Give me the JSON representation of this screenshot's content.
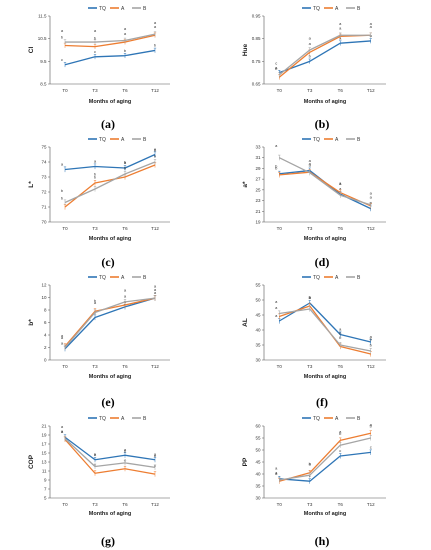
{
  "figure": {
    "colors": {
      "TQ": "#2e75b6",
      "A": "#ed7d31",
      "B": "#a5a5a5",
      "axis": "#555555",
      "text": "#333333"
    },
    "legend_labels": [
      "TQ",
      "A",
      "B"
    ]
  },
  "chart_data": [
    {
      "type": "line",
      "panel": "(a)",
      "categories": [
        "T0",
        "T3",
        "T6",
        "T12"
      ],
      "xlabel": "Months of aging",
      "ylabel": "CI",
      "ylim": [
        8.5,
        11.5
      ],
      "yticks": [
        "8.5",
        "9.5",
        "10.5",
        "11.5"
      ],
      "series": [
        {
          "name": "TQ",
          "values": [
            9.35,
            9.7,
            9.75,
            9.98
          ],
          "letters": [
            "c",
            "c",
            "b",
            "b"
          ]
        },
        {
          "name": "A",
          "values": [
            10.2,
            10.15,
            10.35,
            10.65
          ],
          "letters": [
            "b",
            "b",
            "a",
            "a"
          ]
        },
        {
          "name": "B",
          "values": [
            10.35,
            10.35,
            10.42,
            10.7
          ],
          "letters": [
            "a",
            "a",
            "a",
            "a"
          ]
        }
      ]
    },
    {
      "type": "line",
      "panel": "(b)",
      "categories": [
        "T0",
        "T3",
        "T6",
        "T12"
      ],
      "xlabel": "Months of aging",
      "ylabel": "Hue",
      "ylim": [
        0.65,
        0.95
      ],
      "yticks": [
        "0.65",
        "0.75",
        "0.85",
        "0.95"
      ],
      "series": [
        {
          "name": "TQ",
          "values": [
            0.7,
            0.75,
            0.83,
            0.84
          ],
          "letters": [
            "a",
            "b",
            "a",
            "a"
          ]
        },
        {
          "name": "A",
          "values": [
            0.68,
            0.79,
            0.86,
            0.865
          ],
          "letters": [
            "b",
            "a",
            "a",
            "a"
          ]
        },
        {
          "name": "B",
          "values": [
            0.69,
            0.8,
            0.865,
            0.865
          ],
          "letters": [
            "c",
            "a",
            "a",
            "a"
          ]
        }
      ]
    },
    {
      "type": "line",
      "panel": "(c)",
      "categories": [
        "T0",
        "T3",
        "T6",
        "T12"
      ],
      "xlabel": "Months of aging",
      "ylabel": "L*",
      "ylim": [
        70,
        75
      ],
      "yticks": [
        "70",
        "71",
        "72",
        "73",
        "74",
        "75"
      ],
      "series": [
        {
          "name": "TQ",
          "values": [
            73.5,
            73.7,
            73.6,
            74.5
          ],
          "letters": [
            "a",
            "a",
            "a",
            "a"
          ]
        },
        {
          "name": "A",
          "values": [
            71.0,
            72.6,
            73.0,
            73.8
          ],
          "letters": [
            "b",
            "b",
            "b",
            "b"
          ]
        },
        {
          "name": "B",
          "values": [
            71.3,
            72.2,
            73.2,
            74.0
          ],
          "letters": [
            "b",
            "b",
            "b",
            "b"
          ]
        }
      ]
    },
    {
      "type": "line",
      "panel": "(d)",
      "categories": [
        "T0",
        "T3",
        "T6",
        "T12"
      ],
      "xlabel": "Months of aging",
      "ylabel": "a*",
      "ylim": [
        19,
        33
      ],
      "yticks": [
        "19",
        "21",
        "23",
        "25",
        "27",
        "29",
        "31",
        "33"
      ],
      "series": [
        {
          "name": "TQ",
          "values": [
            28.0,
            28.6,
            24.2,
            21.5
          ],
          "letters": [
            "b",
            "a",
            "a",
            "b"
          ]
        },
        {
          "name": "A",
          "values": [
            27.8,
            28.3,
            24.5,
            22.0
          ],
          "letters": [
            "b",
            "a",
            "a",
            "a"
          ]
        },
        {
          "name": "B",
          "values": [
            31.0,
            28.2,
            24.0,
            22.2
          ],
          "letters": [
            "a",
            "a",
            "a",
            "a"
          ]
        }
      ]
    },
    {
      "type": "line",
      "panel": "(e)",
      "categories": [
        "T0",
        "T3",
        "T6",
        "T12"
      ],
      "xlabel": "Months of aging",
      "ylabel": "b*",
      "ylim": [
        0,
        12
      ],
      "yticks": [
        "0",
        "2",
        "4",
        "6",
        "8",
        "10",
        "12"
      ],
      "series": [
        {
          "name": "TQ",
          "values": [
            1.8,
            6.8,
            8.5,
            9.9
          ],
          "letters": [
            "a",
            "c",
            "a",
            "a"
          ]
        },
        {
          "name": "A",
          "values": [
            2.2,
            7.8,
            8.8,
            9.9
          ],
          "letters": [
            "a",
            "a",
            "a",
            "a"
          ]
        },
        {
          "name": "B",
          "values": [
            2.0,
            7.6,
            9.3,
            9.9
          ],
          "letters": [
            "a",
            "b",
            "a",
            "a"
          ]
        }
      ]
    },
    {
      "type": "line",
      "panel": "(f)",
      "categories": [
        "T0",
        "T3",
        "T6",
        "T12"
      ],
      "xlabel": "Months of aging",
      "ylabel": "AL",
      "ylim": [
        30,
        55
      ],
      "yticks": [
        "30",
        "35",
        "40",
        "45",
        "50",
        "55"
      ],
      "series": [
        {
          "name": "TQ",
          "values": [
            43.0,
            49.0,
            38.5,
            36.0
          ],
          "letters": [
            "a",
            "a",
            "a",
            "a"
          ]
        },
        {
          "name": "A",
          "values": [
            44.5,
            48.0,
            34.5,
            32.0
          ],
          "letters": [
            "a",
            "a",
            "b",
            "b"
          ]
        },
        {
          "name": "B",
          "values": [
            45.5,
            47.0,
            35.0,
            33.0
          ],
          "letters": [
            "a",
            "b",
            "b",
            "b"
          ]
        }
      ]
    },
    {
      "type": "line",
      "panel": "(g)",
      "categories": [
        "T0",
        "T3",
        "T6",
        "T12"
      ],
      "xlabel": "Months of aging",
      "ylabel": "COP",
      "ylim": [
        5,
        21
      ],
      "yticks": [
        "5",
        "7",
        "9",
        "11",
        "13",
        "15",
        "17",
        "19",
        "21"
      ],
      "series": [
        {
          "name": "TQ",
          "values": [
            18.5,
            13.5,
            14.5,
            13.5
          ],
          "letters": [
            "a",
            "a",
            "a",
            "a"
          ]
        },
        {
          "name": "A",
          "values": [
            18.0,
            10.5,
            11.5,
            10.3
          ],
          "letters": [
            "a",
            "c",
            "c",
            "c"
          ]
        },
        {
          "name": "B",
          "values": [
            18.2,
            12.0,
            12.8,
            11.8
          ],
          "letters": [
            "a",
            "b",
            "b",
            "b"
          ]
        }
      ]
    },
    {
      "type": "line",
      "panel": "(h)",
      "categories": [
        "T0",
        "T3",
        "T6",
        "T12"
      ],
      "xlabel": "Months of aging",
      "ylabel": "PP",
      "ylim": [
        30,
        60
      ],
      "yticks": [
        "30",
        "35",
        "40",
        "45",
        "50",
        "55",
        "60"
      ],
      "series": [
        {
          "name": "TQ",
          "values": [
            38.0,
            37.0,
            47.5,
            49.0
          ],
          "letters": [
            "a",
            "c",
            "c",
            "c"
          ]
        },
        {
          "name": "A",
          "values": [
            37.0,
            40.5,
            54.0,
            57.0
          ],
          "letters": [
            "a",
            "a",
            "a",
            "a"
          ]
        },
        {
          "name": "B",
          "values": [
            37.5,
            39.5,
            52.0,
            55.0
          ],
          "letters": [
            "a",
            "b",
            "b",
            "b"
          ]
        }
      ]
    }
  ]
}
